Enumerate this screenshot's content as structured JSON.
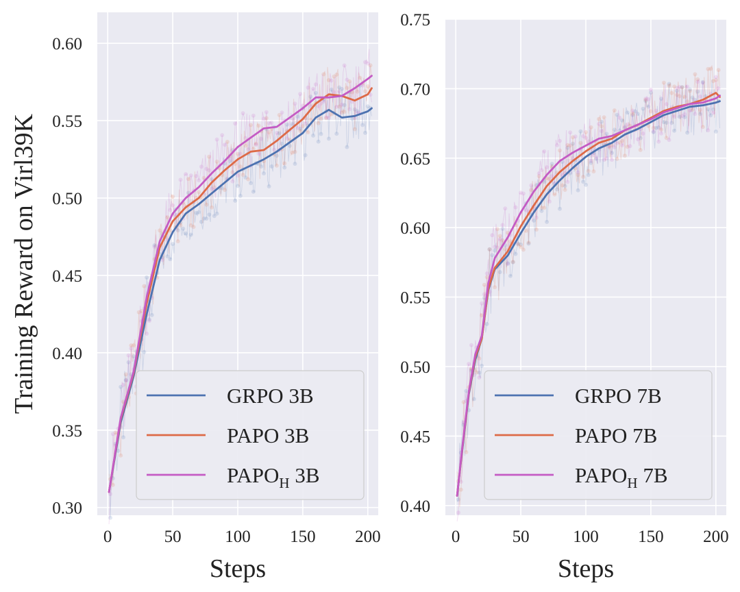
{
  "chart_data": [
    {
      "type": "line",
      "xlabel": "Steps",
      "ylabel": "Training Reward on Virl39K",
      "xlim": [
        -8,
        208
      ],
      "ylim": [
        0.295,
        0.62
      ],
      "xticks": [
        0,
        50,
        100,
        150,
        200
      ],
      "xtick_labels": [
        "0",
        "50",
        "100",
        "150",
        "200"
      ],
      "yticks": [
        0.3,
        0.35,
        0.4,
        0.45,
        0.5,
        0.55,
        0.6
      ],
      "ytick_labels": [
        "0.30",
        "0.35",
        "0.40",
        "0.45",
        "0.50",
        "0.55",
        "0.60"
      ],
      "grid": true,
      "legend_position": "lower-right",
      "series": [
        {
          "name": "GRPO 3B",
          "legend_main": "GRPO",
          "legend_sub": "",
          "legend_tail": " 3B",
          "color": "#4c72b0",
          "x": [
            1,
            10,
            20,
            30,
            40,
            50,
            60,
            70,
            80,
            90,
            100,
            110,
            120,
            130,
            140,
            150,
            160,
            170,
            180,
            190,
            200,
            203
          ],
          "y": [
            0.31,
            0.355,
            0.385,
            0.425,
            0.46,
            0.478,
            0.49,
            0.496,
            0.503,
            0.51,
            0.517,
            0.521,
            0.525,
            0.53,
            0.536,
            0.542,
            0.552,
            0.557,
            0.552,
            0.553,
            0.556,
            0.558
          ]
        },
        {
          "name": "PAPO 3B",
          "legend_main": "PAPO",
          "legend_sub": "",
          "legend_tail": " 3B",
          "color": "#dd6a47",
          "x": [
            1,
            10,
            20,
            30,
            40,
            50,
            60,
            70,
            80,
            90,
            100,
            110,
            120,
            130,
            140,
            150,
            160,
            170,
            180,
            190,
            200,
            203
          ],
          "y": [
            0.31,
            0.357,
            0.387,
            0.432,
            0.468,
            0.485,
            0.494,
            0.5,
            0.51,
            0.518,
            0.525,
            0.53,
            0.531,
            0.537,
            0.544,
            0.551,
            0.561,
            0.567,
            0.566,
            0.563,
            0.567,
            0.571
          ]
        },
        {
          "name": "PAPOH 3B",
          "legend_main": "PAPO",
          "legend_sub": "H",
          "legend_tail": " 3B",
          "color": "#c45bc4",
          "x": [
            1,
            10,
            20,
            30,
            40,
            50,
            60,
            70,
            80,
            90,
            100,
            110,
            120,
            130,
            140,
            150,
            160,
            170,
            180,
            190,
            200,
            203
          ],
          "y": [
            0.31,
            0.358,
            0.388,
            0.436,
            0.472,
            0.49,
            0.5,
            0.507,
            0.516,
            0.524,
            0.533,
            0.539,
            0.545,
            0.546,
            0.552,
            0.558,
            0.565,
            0.565,
            0.566,
            0.571,
            0.577,
            0.579
          ]
        }
      ]
    },
    {
      "type": "line",
      "xlabel": "Steps",
      "ylabel": "",
      "xlim": [
        -8,
        208
      ],
      "ylim": [
        0.393,
        0.75
      ],
      "xticks": [
        0,
        50,
        100,
        150,
        200
      ],
      "xtick_labels": [
        "0",
        "50",
        "100",
        "150",
        "200"
      ],
      "yticks": [
        0.4,
        0.45,
        0.5,
        0.55,
        0.6,
        0.65,
        0.7,
        0.75
      ],
      "ytick_labels": [
        "0.40",
        "0.45",
        "0.50",
        "0.55",
        "0.60",
        "0.65",
        "0.70",
        "0.75"
      ],
      "grid": true,
      "legend_position": "lower-right",
      "series": [
        {
          "name": "GRPO 7B",
          "legend_main": "GRPO",
          "legend_sub": "",
          "legend_tail": " 7B",
          "color": "#4c72b0",
          "x": [
            1,
            5,
            10,
            15,
            20,
            25,
            30,
            40,
            50,
            60,
            70,
            80,
            90,
            100,
            110,
            120,
            130,
            140,
            150,
            160,
            170,
            180,
            190,
            200,
            203
          ],
          "y": [
            0.407,
            0.44,
            0.48,
            0.505,
            0.52,
            0.555,
            0.57,
            0.58,
            0.596,
            0.611,
            0.624,
            0.634,
            0.643,
            0.651,
            0.657,
            0.661,
            0.667,
            0.671,
            0.676,
            0.681,
            0.684,
            0.687,
            0.688,
            0.69,
            0.691
          ]
        },
        {
          "name": "PAPO 7B",
          "legend_main": "PAPO",
          "legend_sub": "",
          "legend_tail": " 7B",
          "color": "#dd6a47",
          "x": [
            1,
            5,
            10,
            15,
            20,
            25,
            30,
            40,
            50,
            60,
            70,
            80,
            90,
            100,
            110,
            120,
            130,
            140,
            150,
            160,
            170,
            180,
            190,
            200,
            203
          ],
          "y": [
            0.407,
            0.441,
            0.481,
            0.507,
            0.52,
            0.556,
            0.571,
            0.583,
            0.601,
            0.616,
            0.63,
            0.64,
            0.648,
            0.655,
            0.661,
            0.664,
            0.67,
            0.674,
            0.679,
            0.684,
            0.687,
            0.689,
            0.692,
            0.697,
            0.694
          ]
        },
        {
          "name": "PAPOH 7B",
          "legend_main": "PAPO",
          "legend_sub": "H",
          "legend_tail": " 7B",
          "color": "#c45bc4",
          "x": [
            1,
            5,
            10,
            15,
            20,
            25,
            30,
            40,
            50,
            60,
            70,
            80,
            90,
            100,
            110,
            120,
            130,
            140,
            150,
            160,
            170,
            180,
            190,
            200,
            203
          ],
          "y": [
            0.407,
            0.442,
            0.482,
            0.509,
            0.522,
            0.56,
            0.578,
            0.593,
            0.611,
            0.626,
            0.638,
            0.648,
            0.654,
            0.659,
            0.664,
            0.666,
            0.67,
            0.674,
            0.678,
            0.683,
            0.686,
            0.689,
            0.69,
            0.693,
            0.695
          ]
        }
      ]
    }
  ]
}
